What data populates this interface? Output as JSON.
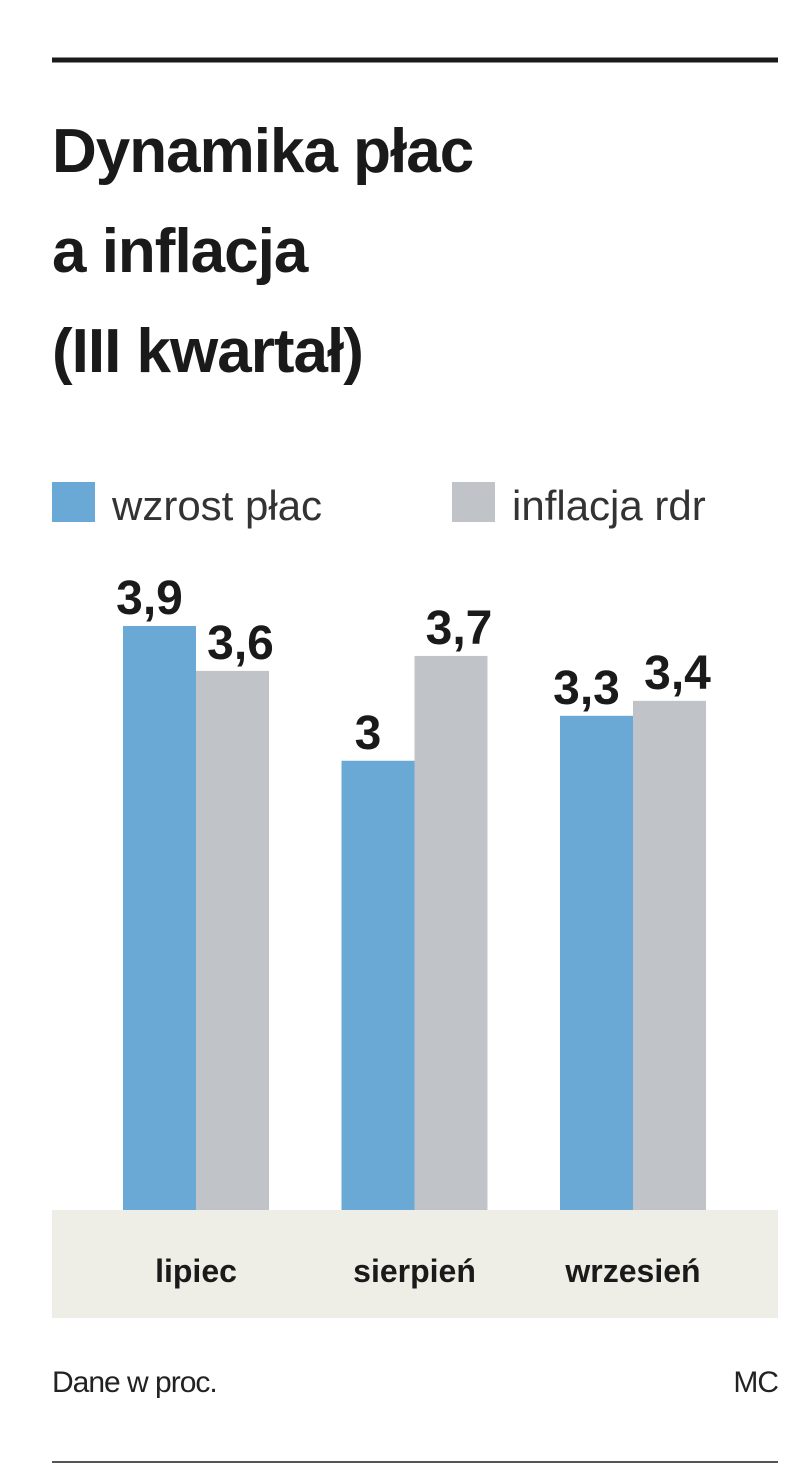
{
  "chart_data": {
    "type": "bar",
    "title_lines": [
      "Dynamika płac",
      "a inflacja",
      "(III kwartał)"
    ],
    "categories": [
      "lipiec",
      "sierpień",
      "wrzesień"
    ],
    "series": [
      {
        "name": "wzrost płac",
        "color": "#6aa8d6",
        "values": [
          3.9,
          3.0,
          3.3
        ],
        "value_labels": [
          "3,9",
          "3",
          "3,3"
        ]
      },
      {
        "name": "inflacja rdr",
        "color": "#c0c4c9",
        "values": [
          3.6,
          3.7,
          3.4
        ],
        "value_labels": [
          "3,6",
          "3,7",
          "3,4"
        ]
      }
    ],
    "ylim": [
      0,
      4
    ],
    "note": "Dane w proc.",
    "source": "MC"
  }
}
